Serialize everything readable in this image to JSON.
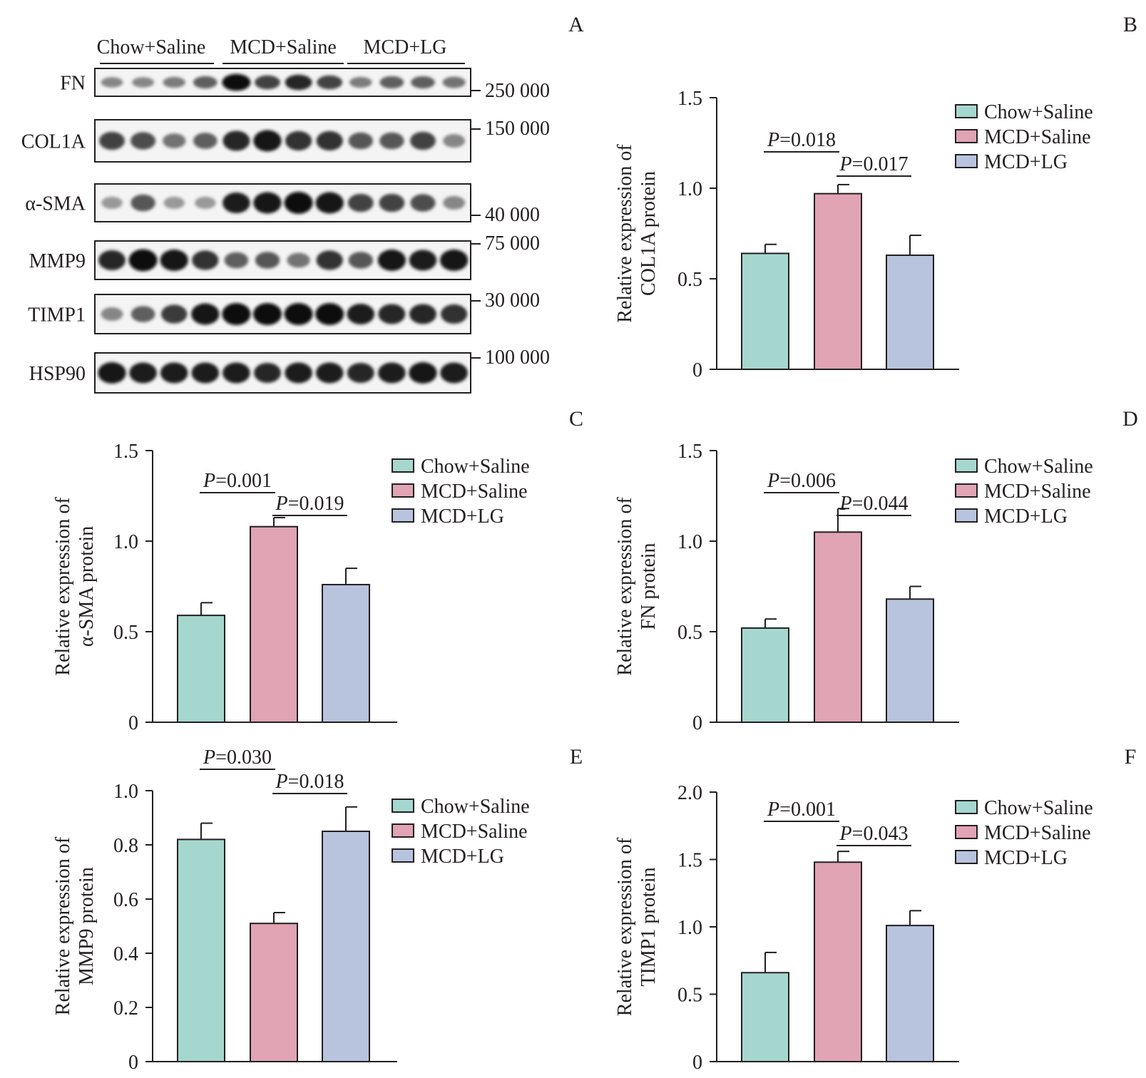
{
  "colors": {
    "chow_saline": "#a6d7cf",
    "mcd_saline": "#e0a4b4",
    "mcd_lg": "#b8c4de",
    "axis": "#231f20",
    "band": "#111111"
  },
  "blot": {
    "panel_label": "A",
    "groups": [
      "Chow+Saline",
      "MCD+Saline",
      "MCD+LG"
    ],
    "rows": [
      {
        "label": "FN",
        "marker": "250 000",
        "intensity": [
          0.35,
          0.35,
          0.4,
          0.55,
          1.0,
          0.7,
          0.85,
          0.7,
          0.4,
          0.55,
          0.55,
          0.45
        ]
      },
      {
        "label": "COL1A",
        "marker": "150 000",
        "intensity": [
          0.7,
          0.65,
          0.45,
          0.55,
          0.85,
          0.95,
          0.8,
          0.8,
          0.6,
          0.6,
          0.7,
          0.35
        ]
      },
      {
        "label": "α-SMA",
        "marker": "40 000",
        "intensity": [
          0.25,
          0.6,
          0.25,
          0.25,
          0.9,
          0.95,
          1.0,
          0.95,
          0.7,
          0.7,
          0.65,
          0.35
        ]
      },
      {
        "label": "MMP9",
        "marker": "75 000",
        "intensity": [
          0.85,
          1.0,
          0.95,
          0.8,
          0.55,
          0.6,
          0.45,
          0.8,
          0.6,
          0.95,
          0.9,
          0.95
        ]
      },
      {
        "label": "TIMP1",
        "marker": "30 000",
        "intensity": [
          0.35,
          0.55,
          0.75,
          0.95,
          1.0,
          1.0,
          1.0,
          1.0,
          0.9,
          0.85,
          0.85,
          0.8
        ]
      },
      {
        "label": "HSP90",
        "marker": "100 000",
        "intensity": [
          0.95,
          0.9,
          0.9,
          0.9,
          0.9,
          0.85,
          0.9,
          0.9,
          0.85,
          0.9,
          0.95,
          0.9
        ]
      }
    ]
  },
  "chart_data": [
    {
      "panel_label": "B",
      "type": "bar",
      "categories": [
        "Chow+Saline",
        "MCD+Saline",
        "MCD+LG"
      ],
      "values": [
        0.64,
        0.97,
        0.63
      ],
      "errors": [
        0.05,
        0.05,
        0.11
      ],
      "ylabel": [
        "Relative expression of",
        "COL1A protein"
      ],
      "ylim": [
        0,
        1.5
      ],
      "yticks": [
        0,
        0.5,
        1.0,
        1.5
      ],
      "tick_labels": [
        "0",
        "0.5",
        "1.0",
        "1.5"
      ],
      "annotations": [
        {
          "pair": [
            0,
            1
          ],
          "p_value": "0.018",
          "p_italic": "P",
          "eq": "="
        },
        {
          "pair": [
            1,
            2
          ],
          "p_value": "0.017",
          "p_italic": "P",
          "eq": "="
        }
      ],
      "legend": [
        "Chow+Saline",
        "MCD+Saline",
        "MCD+LG"
      ],
      "legend_position": "top-right"
    },
    {
      "panel_label": "C",
      "type": "bar",
      "categories": [
        "Chow+Saline",
        "MCD+Saline",
        "MCD+LG"
      ],
      "values": [
        0.59,
        1.08,
        0.76
      ],
      "errors": [
        0.07,
        0.05,
        0.09
      ],
      "ylabel": [
        "Relative expression of",
        "α-SMA protein"
      ],
      "ylim": [
        0,
        1.5
      ],
      "yticks": [
        0,
        0.5,
        1.0,
        1.5
      ],
      "tick_labels": [
        "0",
        "0.5",
        "1.0",
        "1.5"
      ],
      "annotations": [
        {
          "pair": [
            0,
            1
          ],
          "p_value": "0.001",
          "p_italic": "P",
          "eq": "="
        },
        {
          "pair": [
            1,
            2
          ],
          "p_value": "0.019",
          "p_italic": "P",
          "eq": "="
        }
      ],
      "legend": [
        "Chow+Saline",
        "MCD+Saline",
        "MCD+LG"
      ],
      "legend_position": "top-right"
    },
    {
      "panel_label": "D",
      "type": "bar",
      "categories": [
        "Chow+Saline",
        "MCD+Saline",
        "MCD+LG"
      ],
      "values": [
        0.52,
        1.05,
        0.68
      ],
      "errors": [
        0.05,
        0.13,
        0.07
      ],
      "ylabel": [
        "Relative expression of",
        "FN protein"
      ],
      "ylim": [
        0,
        1.5
      ],
      "yticks": [
        0,
        0.5,
        1.0,
        1.5
      ],
      "tick_labels": [
        "0",
        "0.5",
        "1.0",
        "1.5"
      ],
      "annotations": [
        {
          "pair": [
            0,
            1
          ],
          "p_value": "0.006",
          "p_italic": "P",
          "eq": "="
        },
        {
          "pair": [
            1,
            2
          ],
          "p_value": "0.044",
          "p_italic": "P",
          "eq": "="
        }
      ],
      "legend": [
        "Chow+Saline",
        "MCD+Saline",
        "MCD+LG"
      ],
      "legend_position": "top-right"
    },
    {
      "panel_label": "E",
      "type": "bar",
      "categories": [
        "Chow+Saline",
        "MCD+Saline",
        "MCD+LG"
      ],
      "values": [
        0.82,
        0.51,
        0.85
      ],
      "errors": [
        0.06,
        0.04,
        0.09
      ],
      "ylabel": [
        "Relative expression of",
        "MMP9 protein"
      ],
      "ylim": [
        0,
        1.0
      ],
      "yticks": [
        0,
        0.2,
        0.4,
        0.6,
        0.8,
        1.0
      ],
      "tick_labels": [
        "0",
        "0.2",
        "0.4",
        "0.6",
        "0.8",
        "1.0"
      ],
      "annotations": [
        {
          "pair": [
            0,
            1
          ],
          "p_value": "0.030",
          "p_italic": "P",
          "eq": "="
        },
        {
          "pair": [
            1,
            2
          ],
          "p_value": "0.018",
          "p_italic": "P",
          "eq": "="
        }
      ],
      "legend": [
        "Chow+Saline",
        "MCD+Saline",
        "MCD+LG"
      ],
      "legend_position": "top-right"
    },
    {
      "panel_label": "F",
      "type": "bar",
      "categories": [
        "Chow+Saline",
        "MCD+Saline",
        "MCD+LG"
      ],
      "values": [
        0.66,
        1.48,
        1.01
      ],
      "errors": [
        0.15,
        0.08,
        0.11
      ],
      "ylabel": [
        "Relative expression of",
        "TIMP1 protein"
      ],
      "ylim": [
        0,
        2.0
      ],
      "yticks": [
        0,
        0.5,
        1.0,
        1.5,
        2.0
      ],
      "tick_labels": [
        "0",
        "0.5",
        "1.0",
        "1.5",
        "2.0"
      ],
      "annotations": [
        {
          "pair": [
            0,
            1
          ],
          "p_value": "0.001",
          "p_italic": "P",
          "eq": "="
        },
        {
          "pair": [
            1,
            2
          ],
          "p_value": "0.043",
          "p_italic": "P",
          "eq": "="
        }
      ],
      "legend": [
        "Chow+Saline",
        "MCD+Saline",
        "MCD+LG"
      ],
      "legend_position": "top-right"
    }
  ]
}
